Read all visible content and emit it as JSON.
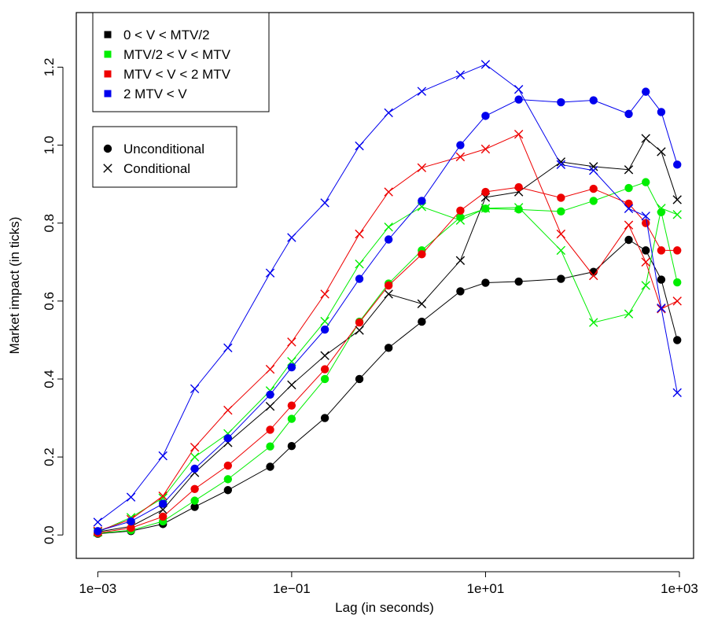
{
  "chart_data": {
    "type": "line",
    "title": "",
    "xlabel": "Lag (in seconds)",
    "ylabel": "Market impact (in ticks)",
    "x_scale": "log",
    "xlim": [
      0.0006,
      1400
    ],
    "ylim": [
      -0.06,
      1.34
    ],
    "x_ticks": [
      {
        "value": 0.001,
        "label": "1e−03"
      },
      {
        "value": 0.1,
        "label": "1e−01"
      },
      {
        "value": 10,
        "label": "1e+01"
      },
      {
        "value": 1000,
        "label": "1e+03"
      }
    ],
    "y_ticks": [
      {
        "value": 0.0,
        "label": "0.0"
      },
      {
        "value": 0.2,
        "label": "0.2"
      },
      {
        "value": 0.4,
        "label": "0.4"
      },
      {
        "value": 0.6,
        "label": "0.6"
      },
      {
        "value": 0.8,
        "label": "0.8"
      },
      {
        "value": 1.0,
        "label": "1.0"
      },
      {
        "value": 1.2,
        "label": "1.2"
      }
    ],
    "x": [
      0.001,
      0.0022,
      0.0047,
      0.01,
      0.022,
      0.06,
      0.1,
      0.22,
      0.5,
      1,
      2.2,
      5.5,
      10,
      22,
      60,
      130,
      300,
      450,
      650,
      950
    ],
    "legend_groups": [
      {
        "position": "top-left",
        "entries": [
          {
            "label": "0 < V < MTV/2",
            "color": "#000000",
            "marker": "square"
          },
          {
            "label": "MTV/2 < V < MTV",
            "color": "#00ee00",
            "marker": "square"
          },
          {
            "label": "MTV < V < 2 MTV",
            "color": "#ee0000",
            "marker": "square"
          },
          {
            "label": "2 MTV < V",
            "color": "#0000ee",
            "marker": "square"
          }
        ]
      },
      {
        "position": "top-left",
        "entries": [
          {
            "label": "Unconditional",
            "color": "#000000",
            "marker": "circle"
          },
          {
            "label": "Conditional",
            "color": "#000000",
            "marker": "cross"
          }
        ]
      }
    ],
    "series": [
      {
        "color": "#000000",
        "type": "unconditional",
        "values": [
          0.003,
          0.01,
          0.028,
          0.072,
          0.115,
          0.175,
          0.228,
          0.3,
          0.4,
          0.48,
          0.547,
          0.625,
          0.647,
          0.65,
          0.657,
          0.675,
          0.757,
          0.73,
          0.655,
          0.5
        ]
      },
      {
        "color": "#000000",
        "type": "conditional",
        "values": [
          0.008,
          0.022,
          0.065,
          0.16,
          0.237,
          0.33,
          0.385,
          0.46,
          0.525,
          0.618,
          0.593,
          0.704,
          0.866,
          0.88,
          0.957,
          0.945,
          0.937,
          1.017,
          0.983,
          0.86
        ]
      },
      {
        "color": "#00ee00",
        "type": "unconditional",
        "values": [
          0.004,
          0.012,
          0.035,
          0.088,
          0.143,
          0.227,
          0.298,
          0.4,
          0.547,
          0.645,
          0.73,
          0.815,
          0.837,
          0.835,
          0.83,
          0.857,
          0.89,
          0.905,
          0.828,
          0.648
        ]
      },
      {
        "color": "#00ee00",
        "type": "conditional",
        "values": [
          0.007,
          0.045,
          0.095,
          0.2,
          0.26,
          0.37,
          0.445,
          0.548,
          0.695,
          0.79,
          0.842,
          0.807,
          0.838,
          0.84,
          0.73,
          0.545,
          0.567,
          0.64,
          0.838,
          0.822
        ]
      },
      {
        "color": "#ee0000",
        "type": "unconditional",
        "values": [
          0.005,
          0.018,
          0.047,
          0.118,
          0.178,
          0.27,
          0.332,
          0.425,
          0.545,
          0.64,
          0.72,
          0.832,
          0.88,
          0.892,
          0.865,
          0.888,
          0.85,
          0.8,
          0.73,
          0.73
        ]
      },
      {
        "color": "#ee0000",
        "type": "conditional",
        "values": [
          0.01,
          0.04,
          0.1,
          0.225,
          0.32,
          0.425,
          0.495,
          0.618,
          0.772,
          0.88,
          0.942,
          0.97,
          0.99,
          1.028,
          0.772,
          0.665,
          0.795,
          0.7,
          0.58,
          0.6
        ]
      },
      {
        "color": "#0000ee",
        "type": "unconditional",
        "values": [
          0.01,
          0.035,
          0.08,
          0.17,
          0.248,
          0.36,
          0.43,
          0.527,
          0.657,
          0.758,
          0.857,
          1.0,
          1.075,
          1.117,
          1.11,
          1.115,
          1.08,
          1.137,
          1.085,
          0.95
        ]
      },
      {
        "color": "#0000ee",
        "type": "conditional",
        "values": [
          0.033,
          0.097,
          0.203,
          0.375,
          0.48,
          0.672,
          0.763,
          0.852,
          0.998,
          1.083,
          1.138,
          1.18,
          1.207,
          1.143,
          0.95,
          0.935,
          0.837,
          0.818,
          0.582,
          0.365
        ]
      }
    ]
  }
}
